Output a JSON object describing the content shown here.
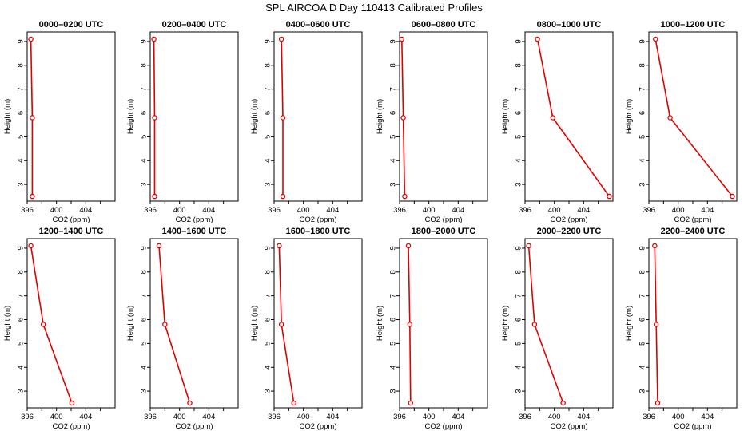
{
  "figure": {
    "title": "SPL AIRCOA D  Day 110413  Calibrated Profiles"
  },
  "style": {
    "line_color": "#e00000",
    "axis_color": "#000000",
    "background": "#ffffff"
  },
  "chart_data": [
    {
      "type": "line",
      "title": "0000–0200 UTC",
      "xlabel": "CO2 (ppm)",
      "ylabel": "Height (m)",
      "xlim": [
        396,
        408
      ],
      "ylim": [
        2.3,
        9.4
      ],
      "xticks": [
        "396",
        "400",
        "404"
      ],
      "yticks": [
        "3",
        "4",
        "5",
        "6",
        "7",
        "8",
        "9"
      ],
      "series": [
        {
          "x": [
            396.5,
            396.7,
            396.7
          ],
          "y": [
            9.1,
            5.8,
            2.5
          ]
        }
      ]
    },
    {
      "type": "line",
      "title": "0200–0400 UTC",
      "xlabel": "CO2 (ppm)",
      "ylabel": "Height (m)",
      "xlim": [
        396,
        408
      ],
      "ylim": [
        2.3,
        9.4
      ],
      "xticks": [
        "396",
        "400",
        "404"
      ],
      "yticks": [
        "3",
        "4",
        "5",
        "6",
        "7",
        "8",
        "9"
      ],
      "series": [
        {
          "x": [
            396.5,
            396.6,
            396.6
          ],
          "y": [
            9.1,
            5.8,
            2.5
          ]
        }
      ]
    },
    {
      "type": "line",
      "title": "0400–0600 UTC",
      "xlabel": "CO2 (ppm)",
      "ylabel": "Height (m)",
      "xlim": [
        396,
        408
      ],
      "ylim": [
        2.3,
        9.4
      ],
      "xticks": [
        "396",
        "400",
        "404"
      ],
      "yticks": [
        "3",
        "4",
        "5",
        "6",
        "7",
        "8",
        "9"
      ],
      "series": [
        {
          "x": [
            397.0,
            397.2,
            397.2
          ],
          "y": [
            9.1,
            5.8,
            2.5
          ]
        }
      ]
    },
    {
      "type": "line",
      "title": "0600–0800 UTC",
      "xlabel": "CO2 (ppm)",
      "ylabel": "Height (m)",
      "xlim": [
        396,
        408
      ],
      "ylim": [
        2.3,
        9.4
      ],
      "xticks": [
        "396",
        "400",
        "404"
      ],
      "yticks": [
        "3",
        "4",
        "5",
        "6",
        "7",
        "8",
        "9"
      ],
      "series": [
        {
          "x": [
            396.3,
            396.5,
            396.7
          ],
          "y": [
            9.1,
            5.8,
            2.5
          ]
        }
      ]
    },
    {
      "type": "line",
      "title": "0800–1000 UTC",
      "xlabel": "CO2 (ppm)",
      "ylabel": "Height (m)",
      "xlim": [
        396,
        408
      ],
      "ylim": [
        2.3,
        9.4
      ],
      "xticks": [
        "396",
        "400",
        "404"
      ],
      "yticks": [
        "3",
        "4",
        "5",
        "6",
        "7",
        "8",
        "9"
      ],
      "series": [
        {
          "x": [
            397.7,
            399.8,
            407.5
          ],
          "y": [
            9.1,
            5.8,
            2.5
          ]
        }
      ]
    },
    {
      "type": "line",
      "title": "1000–1200 UTC",
      "xlabel": "CO2 (ppm)",
      "ylabel": "Height (m)",
      "xlim": [
        396,
        408
      ],
      "ylim": [
        2.3,
        9.4
      ],
      "xticks": [
        "396",
        "400",
        "404"
      ],
      "yticks": [
        "3",
        "4",
        "5",
        "6",
        "7",
        "8",
        "9"
      ],
      "series": [
        {
          "x": [
            396.9,
            398.9,
            407.4
          ],
          "y": [
            9.1,
            5.8,
            2.5
          ]
        }
      ]
    },
    {
      "type": "line",
      "title": "1200–1400 UTC",
      "xlabel": "CO2 (ppm)",
      "ylabel": "Height (m)",
      "xlim": [
        396,
        408
      ],
      "ylim": [
        2.3,
        9.4
      ],
      "xticks": [
        "396",
        "400",
        "404"
      ],
      "yticks": [
        "3",
        "4",
        "5",
        "6",
        "7",
        "8",
        "9"
      ],
      "series": [
        {
          "x": [
            396.5,
            398.2,
            402.1
          ],
          "y": [
            9.1,
            5.8,
            2.5
          ]
        }
      ]
    },
    {
      "type": "line",
      "title": "1400–1600 UTC",
      "xlabel": "CO2 (ppm)",
      "ylabel": "Height (m)",
      "xlim": [
        396,
        408
      ],
      "ylim": [
        2.3,
        9.4
      ],
      "xticks": [
        "396",
        "400",
        "404"
      ],
      "yticks": [
        "3",
        "4",
        "5",
        "6",
        "7",
        "8",
        "9"
      ],
      "series": [
        {
          "x": [
            397.2,
            398.0,
            401.4
          ],
          "y": [
            9.1,
            5.8,
            2.5
          ]
        }
      ]
    },
    {
      "type": "line",
      "title": "1600–1800 UTC",
      "xlabel": "CO2 (ppm)",
      "ylabel": "Height (m)",
      "xlim": [
        396,
        408
      ],
      "ylim": [
        2.3,
        9.4
      ],
      "xticks": [
        "396",
        "400",
        "404"
      ],
      "yticks": [
        "3",
        "4",
        "5",
        "6",
        "7",
        "8",
        "9"
      ],
      "series": [
        {
          "x": [
            396.7,
            397.0,
            398.7
          ],
          "y": [
            9.1,
            5.8,
            2.5
          ]
        }
      ]
    },
    {
      "type": "line",
      "title": "1800–2000 UTC",
      "xlabel": "CO2 (ppm)",
      "ylabel": "Height (m)",
      "xlim": [
        396,
        408
      ],
      "ylim": [
        2.3,
        9.4
      ],
      "xticks": [
        "396",
        "400",
        "404"
      ],
      "yticks": [
        "3",
        "4",
        "5",
        "6",
        "7",
        "8",
        "9"
      ],
      "series": [
        {
          "x": [
            397.2,
            397.4,
            397.5
          ],
          "y": [
            9.1,
            5.8,
            2.5
          ]
        }
      ]
    },
    {
      "type": "line",
      "title": "2000–2200 UTC",
      "xlabel": "CO2 (ppm)",
      "ylabel": "Height (m)",
      "xlim": [
        396,
        408
      ],
      "ylim": [
        2.3,
        9.4
      ],
      "xticks": [
        "396",
        "400",
        "404"
      ],
      "yticks": [
        "3",
        "4",
        "5",
        "6",
        "7",
        "8",
        "9"
      ],
      "series": [
        {
          "x": [
            396.5,
            397.3,
            401.2
          ],
          "y": [
            9.1,
            5.8,
            2.5
          ]
        }
      ]
    },
    {
      "type": "line",
      "title": "2200–2400 UTC",
      "xlabel": "CO2 (ppm)",
      "ylabel": "Height (m)",
      "xlim": [
        396,
        408
      ],
      "ylim": [
        2.3,
        9.4
      ],
      "xticks": [
        "396",
        "400",
        "404"
      ],
      "yticks": [
        "3",
        "4",
        "5",
        "6",
        "7",
        "8",
        "9"
      ],
      "series": [
        {
          "x": [
            396.8,
            397.0,
            397.2
          ],
          "y": [
            9.1,
            5.8,
            2.5
          ]
        }
      ]
    }
  ]
}
